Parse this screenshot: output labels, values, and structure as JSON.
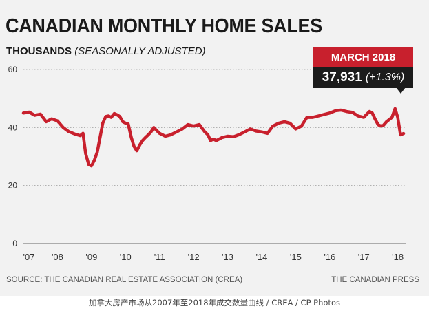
{
  "figure": {
    "title": "CANADIAN MONTHLY HOME SALES",
    "subtitle_bold": "THOUSANDS",
    "subtitle_italic": "(SEASONALLY ADJUSTED)",
    "source": "SOURCE: THE CANADIAN REAL ESTATE ASSOCIATION (CREA)",
    "credit": "THE CANADIAN PRESS",
    "caption": "加拿大房产市场从2007年至2018年成交数量曲线 / CREA / CP Photos"
  },
  "callout": {
    "label": "MARCH 2018",
    "value": "37,931",
    "change": "(+1.3%)"
  },
  "colors": {
    "line": "#c8202d",
    "callout_label_bg": "#c8202d",
    "callout_value_bg": "#1c1c1c",
    "background": "#f2f2f2"
  },
  "chart_data": {
    "type": "line",
    "title": "CANADIAN MONTHLY HOME SALES",
    "ylabel": "THOUSANDS (SEASONALLY ADJUSTED)",
    "xlabel": "",
    "ylim": [
      0,
      60
    ],
    "yticks": [
      0,
      20,
      40,
      60
    ],
    "grid": "horizontal dotted",
    "legend": "none",
    "x_tick_labels": [
      "'07",
      "'08",
      "'09",
      "'10",
      "'11",
      "'12",
      "'13",
      "'14",
      "'15",
      "'16",
      "'17",
      "'18"
    ],
    "x_tick_years": [
      2007,
      2008,
      2009,
      2010,
      2011,
      2012,
      2013,
      2014,
      2015,
      2016,
      2017,
      2018
    ],
    "x_range_years": [
      2007,
      2018.25
    ],
    "series": [
      {
        "x": [
          2007.0,
          2007.17,
          2007.33,
          2007.5,
          2007.67,
          2007.83,
          2008.0,
          2008.17,
          2008.33,
          2008.5,
          2008.67,
          2008.75,
          2008.83,
          2008.92,
          2009.0,
          2009.08,
          2009.17,
          2009.25,
          2009.33,
          2009.42,
          2009.5,
          2009.58,
          2009.67,
          2009.75,
          2009.83,
          2009.92,
          2010.0,
          2010.08,
          2010.17,
          2010.25,
          2010.33,
          2010.42,
          2010.5,
          2010.58,
          2010.67,
          2010.75,
          2010.83,
          2011.0,
          2011.17,
          2011.33,
          2011.5,
          2011.67,
          2011.83,
          2012.0,
          2012.17,
          2012.33,
          2012.42,
          2012.5,
          2012.58,
          2012.67,
          2012.83,
          2013.0,
          2013.17,
          2013.33,
          2013.5,
          2013.67,
          2013.83,
          2014.0,
          2014.17,
          2014.33,
          2014.5,
          2014.67,
          2014.83,
          2015.0,
          2015.17,
          2015.33,
          2015.5,
          2015.67,
          2015.83,
          2016.0,
          2016.17,
          2016.33,
          2016.5,
          2016.67,
          2016.83,
          2017.0,
          2017.08,
          2017.17,
          2017.25,
          2017.33,
          2017.42,
          2017.5,
          2017.58,
          2017.67,
          2017.83,
          2017.92,
          2018.0,
          2018.08,
          2018.17
        ],
        "y": [
          45,
          45.3,
          44.2,
          44.6,
          42,
          43,
          42.3,
          40,
          38.6,
          37.8,
          37.2,
          38,
          31,
          27.2,
          26.8,
          28.6,
          31.5,
          36.5,
          41.5,
          43.8,
          44,
          43.5,
          44.8,
          44.4,
          43.8,
          42,
          41.5,
          41.2,
          36.5,
          33.5,
          32,
          34,
          35.5,
          36.5,
          37.5,
          38.5,
          40,
          38,
          37,
          37.5,
          38.5,
          39.5,
          41,
          40.5,
          41,
          38.5,
          37.5,
          35.5,
          36,
          35.5,
          36.5,
          37,
          36.8,
          37.5,
          38.5,
          39.5,
          38.8,
          38.5,
          38,
          40.5,
          41.5,
          42,
          41.5,
          39.5,
          40.5,
          43.5,
          43.5,
          44,
          44.5,
          45,
          45.8,
          46,
          45.5,
          45.2,
          44,
          43.5,
          44.5,
          45.5,
          45,
          43,
          41,
          40.5,
          40.8,
          42,
          43.5,
          46.5,
          43.5,
          37.5,
          37.931
        ]
      }
    ]
  }
}
